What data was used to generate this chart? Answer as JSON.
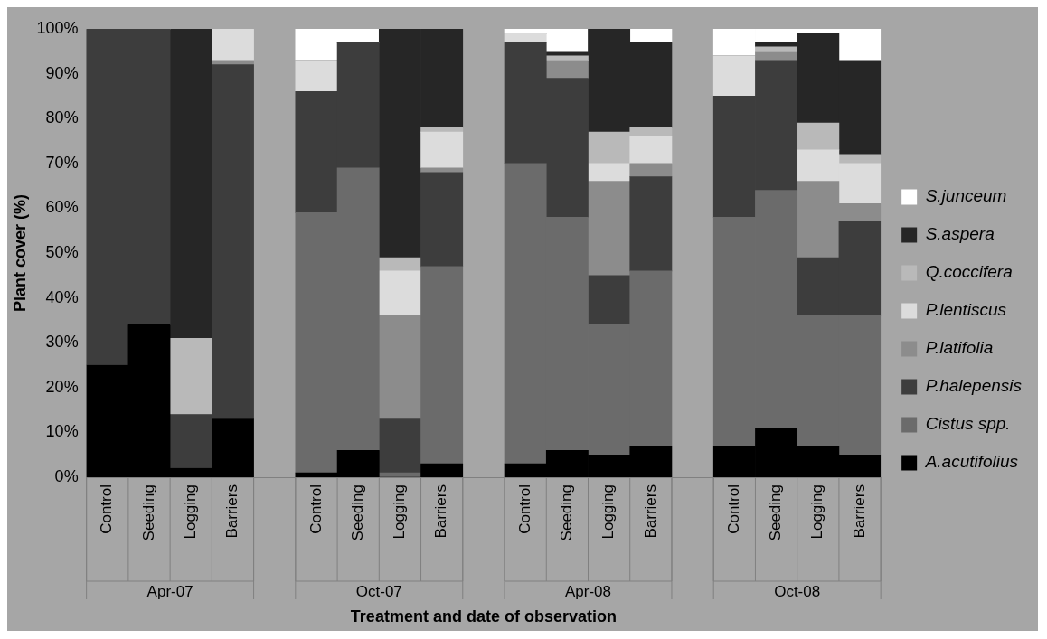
{
  "chart_data": {
    "type": "bar",
    "stacked": true,
    "xlabel": "Treatment and date of observation",
    "ylabel": "Plant cover (%)",
    "categories": [
      "Control",
      "Seeding",
      "Logging",
      "Barriers",
      null,
      "Control",
      "Seeding",
      "Logging",
      "Barriers",
      null,
      "Control",
      "Seeding",
      "Logging",
      "Barriers",
      null,
      "Control",
      "Seeding",
      "Logging",
      "Barriers"
    ],
    "annotations": [
      "Apr-07",
      "Oct-07",
      "Apr-08",
      "Oct-08"
    ],
    "ylim": [
      0,
      100
    ],
    "yticks": [
      {
        "value": 0,
        "label": "0%"
      },
      {
        "value": 10,
        "label": "10%"
      },
      {
        "value": 20,
        "label": "20%"
      },
      {
        "value": 30,
        "label": "30%"
      },
      {
        "value": 40,
        "label": "40%"
      },
      {
        "value": 50,
        "label": "50%"
      },
      {
        "value": 60,
        "label": "60%"
      },
      {
        "value": 70,
        "label": "70%"
      },
      {
        "value": 80,
        "label": "80%"
      },
      {
        "value": 90,
        "label": "90%"
      },
      {
        "value": 100,
        "label": "100%"
      }
    ],
    "legend": "right",
    "series": [
      {
        "name": "A.acutifolius",
        "color": "#000000",
        "values": [
          25,
          34,
          2,
          13,
          null,
          1,
          6,
          0,
          3,
          null,
          3,
          6,
          5,
          7,
          null,
          7,
          11,
          7,
          5
        ]
      },
      {
        "name": "Cistus spp.",
        "color": "#6b6b6b",
        "values": [
          0,
          0,
          0,
          0,
          null,
          58,
          63,
          1,
          44,
          null,
          67,
          52,
          29,
          39,
          null,
          51,
          53,
          29,
          31
        ]
      },
      {
        "name": "P.halepensis",
        "color": "#3d3d3d",
        "values": [
          75,
          66,
          12,
          79,
          null,
          27,
          28,
          12,
          21,
          null,
          27,
          31,
          11,
          21,
          null,
          27,
          29,
          13,
          21
        ]
      },
      {
        "name": "P.latifolia",
        "color": "#8c8c8c",
        "values": [
          0,
          0,
          0,
          1,
          null,
          0,
          0,
          23,
          1,
          null,
          0,
          4,
          21,
          3,
          null,
          0,
          2,
          17,
          4
        ]
      },
      {
        "name": "P.lentiscus",
        "color": "#dcdcdc",
        "values": [
          0,
          0,
          0,
          7,
          null,
          7,
          0,
          10,
          8,
          null,
          2,
          0,
          4,
          6,
          null,
          9,
          0,
          7,
          9
        ]
      },
      {
        "name": "Q.coccifera",
        "color": "#b9b9b9",
        "values": [
          0,
          0,
          17,
          0,
          null,
          0,
          0,
          3,
          1,
          null,
          0,
          1,
          7,
          2,
          null,
          0,
          1,
          6,
          2
        ]
      },
      {
        "name": "S.aspera",
        "color": "#262626",
        "values": [
          0,
          0,
          69,
          0,
          null,
          0,
          0,
          51,
          22,
          null,
          0,
          1,
          23,
          19,
          null,
          0,
          1,
          20,
          21
        ]
      },
      {
        "name": "S.junceum",
        "color": "#ffffff",
        "values": [
          0,
          0,
          0,
          0,
          null,
          7,
          3,
          0,
          0,
          null,
          1,
          5,
          0,
          3,
          null,
          6,
          3,
          1,
          7
        ]
      }
    ]
  }
}
